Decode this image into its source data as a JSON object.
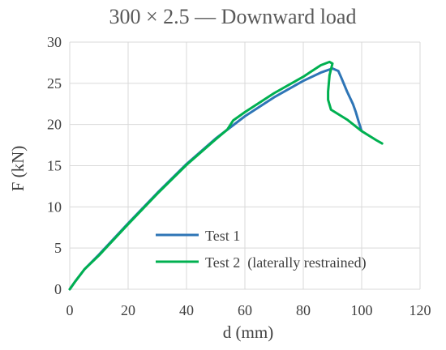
{
  "chart_data": {
    "type": "line",
    "title": "300 × 2.5  — Downward load",
    "xlabel": "d (mm)",
    "ylabel": "F (kN)",
    "xlim": [
      0,
      120
    ],
    "ylim": [
      0,
      30
    ],
    "xticks": [
      0,
      20,
      40,
      60,
      80,
      100,
      120
    ],
    "yticks": [
      0,
      5,
      10,
      15,
      20,
      25,
      30
    ],
    "grid": true,
    "legend_position": "lower-center",
    "series": [
      {
        "name": "Test 1",
        "color": "#2e75b6",
        "points": [
          [
            0,
            0
          ],
          [
            2,
            1.0
          ],
          [
            5,
            2.4
          ],
          [
            10,
            4.2
          ],
          [
            20,
            8.0
          ],
          [
            30,
            11.7
          ],
          [
            40,
            15.2
          ],
          [
            50,
            18.3
          ],
          [
            60,
            21.0
          ],
          [
            70,
            23.3
          ],
          [
            80,
            25.3
          ],
          [
            86,
            26.3
          ],
          [
            90,
            26.8
          ],
          [
            92,
            26.5
          ],
          [
            93,
            25.7
          ],
          [
            95,
            24.0
          ],
          [
            97,
            22.5
          ],
          [
            98,
            21.5
          ],
          [
            99,
            20.3
          ],
          [
            100,
            19.2
          ]
        ]
      },
      {
        "name": "Test 2  (laterally restrained)",
        "color": "#00b050",
        "points": [
          [
            0,
            0
          ],
          [
            2,
            1.0
          ],
          [
            5,
            2.4
          ],
          [
            10,
            4.1
          ],
          [
            20,
            7.9
          ],
          [
            30,
            11.6
          ],
          [
            40,
            15.1
          ],
          [
            50,
            18.2
          ],
          [
            54,
            19.4
          ],
          [
            56,
            20.5
          ],
          [
            60,
            21.5
          ],
          [
            70,
            23.8
          ],
          [
            80,
            25.8
          ],
          [
            86,
            27.2
          ],
          [
            89,
            27.6
          ],
          [
            90,
            27.4
          ],
          [
            89,
            26.0
          ],
          [
            88.5,
            24.0
          ],
          [
            88.5,
            23.0
          ],
          [
            89.5,
            21.8
          ],
          [
            95,
            20.6
          ],
          [
            100,
            19.2
          ],
          [
            105,
            18.1
          ],
          [
            107,
            17.7
          ]
        ]
      }
    ]
  }
}
